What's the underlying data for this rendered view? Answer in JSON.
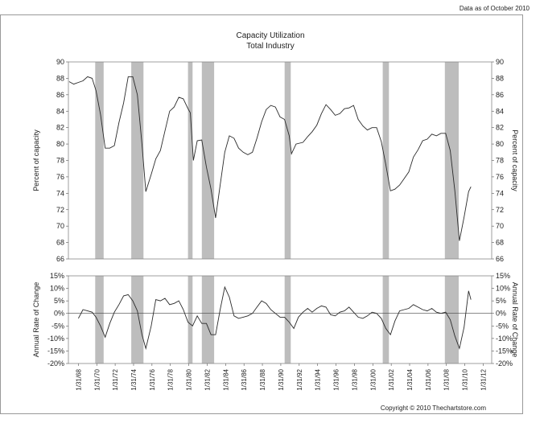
{
  "header_note": "Data as of October 2010",
  "copyright": "Copyright © 2010 Thechartstore.com",
  "colors": {
    "line": "#2a2a2a",
    "recession": "#bdbdbd",
    "axis": "#555555",
    "frame": "#888888"
  },
  "chart_data": [
    {
      "type": "line",
      "title": "Capacity Utilization",
      "subtitle": "Total Industry",
      "ylabel": "Percent of capacity",
      "ylabel_right": "Percent of capacity",
      "ylim": [
        66,
        90
      ],
      "yticks": [
        66,
        68,
        70,
        72,
        74,
        76,
        78,
        80,
        82,
        84,
        86,
        88,
        90
      ],
      "xlim": [
        "1967-01-01",
        "2013-01-01"
      ],
      "grid": false,
      "shaded_periods": [
        [
          "1969-12-01",
          "1970-11-01"
        ],
        [
          "1973-11-01",
          "1975-03-01"
        ],
        [
          "1980-01-01",
          "1980-07-01"
        ],
        [
          "1981-07-01",
          "1982-11-01"
        ],
        [
          "1990-07-01",
          "1991-03-01"
        ],
        [
          "2001-03-01",
          "2001-11-01"
        ],
        [
          "2007-12-01",
          "2009-06-01"
        ]
      ],
      "series": [
        {
          "x": [
            "1967-01-31",
            "1967-07-31",
            "1968-01-31",
            "1968-07-31",
            "1969-01-31",
            "1969-07-31",
            "1969-12-31",
            "1970-06-30",
            "1970-12-31",
            "1971-06-30",
            "1971-12-31",
            "1972-06-30",
            "1972-12-31",
            "1973-06-30",
            "1973-12-31",
            "1974-06-30",
            "1974-12-31",
            "1975-05-31",
            "1975-12-31",
            "1976-06-30",
            "1976-12-31",
            "1977-06-30",
            "1977-12-31",
            "1978-06-30",
            "1978-12-31",
            "1979-06-30",
            "1979-12-31",
            "1980-03-31",
            "1980-07-31",
            "1980-12-31",
            "1981-06-30",
            "1981-12-31",
            "1982-06-30",
            "1982-12-31",
            "1983-06-30",
            "1983-12-31",
            "1984-06-30",
            "1984-12-31",
            "1985-06-30",
            "1985-12-31",
            "1986-06-30",
            "1986-12-31",
            "1987-06-30",
            "1987-12-31",
            "1988-06-30",
            "1988-12-31",
            "1989-06-30",
            "1989-12-31",
            "1990-06-30",
            "1990-12-31",
            "1991-03-31",
            "1991-09-30",
            "1992-06-30",
            "1992-12-31",
            "1993-06-30",
            "1993-12-31",
            "1994-06-30",
            "1994-12-31",
            "1995-06-30",
            "1995-12-31",
            "1996-06-30",
            "1996-12-31",
            "1997-06-30",
            "1997-12-31",
            "1998-06-30",
            "1998-12-31",
            "1999-06-30",
            "1999-12-31",
            "2000-06-30",
            "2000-12-31",
            "2001-06-30",
            "2001-12-31",
            "2002-06-30",
            "2002-12-31",
            "2003-06-30",
            "2003-12-31",
            "2004-06-30",
            "2004-12-31",
            "2005-06-30",
            "2005-12-31",
            "2006-06-30",
            "2006-12-31",
            "2007-06-30",
            "2007-12-31",
            "2008-06-30",
            "2008-12-31",
            "2009-06-30",
            "2009-12-31",
            "2010-06-30",
            "2010-09-30"
          ],
          "y": [
            87.6,
            87.3,
            87.5,
            87.7,
            88.2,
            88.0,
            86.5,
            83.6,
            79.5,
            79.5,
            79.8,
            82.6,
            85.0,
            88.2,
            88.2,
            86.0,
            80.0,
            74.2,
            76.3,
            78.2,
            79.2,
            81.6,
            84.0,
            84.5,
            85.7,
            85.5,
            84.3,
            83.8,
            78.0,
            80.4,
            80.5,
            77.2,
            74.5,
            71.0,
            75.0,
            79.0,
            81.0,
            80.7,
            79.5,
            79.0,
            78.7,
            79.0,
            80.7,
            82.7,
            84.2,
            84.7,
            84.5,
            83.3,
            83.0,
            81.0,
            78.8,
            80.0,
            80.2,
            80.9,
            81.5,
            82.3,
            83.7,
            84.8,
            84.2,
            83.5,
            83.7,
            84.3,
            84.4,
            84.7,
            83.0,
            82.2,
            81.7,
            82.0,
            82.0,
            80.3,
            77.5,
            74.3,
            74.5,
            75.0,
            75.8,
            76.6,
            78.4,
            79.3,
            80.4,
            80.6,
            81.2,
            81.0,
            81.3,
            81.3,
            79.2,
            74.3,
            68.2,
            71.1,
            74.2,
            74.8
          ]
        }
      ]
    },
    {
      "type": "line",
      "title": "",
      "ylabel": "Annual Rate of Change",
      "ylabel_right": "Annual Rate of Change",
      "ylim": [
        -20,
        15
      ],
      "yticks": [
        -20,
        -15,
        -10,
        -5,
        0,
        5,
        10,
        15
      ],
      "ytick_labels": [
        "-20%",
        "-15%",
        "-10%",
        "-5%",
        "0%",
        "5%",
        "10%",
        "15%"
      ],
      "xlim": [
        "1967-01-01",
        "2013-01-01"
      ],
      "xtick_labels": [
        "1/31/68",
        "1/31/70",
        "1/31/72",
        "1/31/74",
        "1/31/76",
        "1/31/78",
        "1/31/80",
        "1/31/82",
        "1/31/84",
        "1/31/86",
        "1/31/88",
        "1/31/90",
        "1/31/92",
        "1/31/94",
        "1/31/96",
        "1/31/98",
        "1/31/00",
        "1/31/02",
        "1/31/04",
        "1/31/06",
        "1/31/08",
        "1/31/10",
        "1/31/12"
      ],
      "xtick_dates": [
        "1968-01-31",
        "1970-01-31",
        "1972-01-31",
        "1974-01-31",
        "1976-01-31",
        "1978-01-31",
        "1980-01-31",
        "1982-01-31",
        "1984-01-31",
        "1986-01-31",
        "1988-01-31",
        "1990-01-31",
        "1992-01-31",
        "1994-01-31",
        "1996-01-31",
        "1998-01-31",
        "2000-01-31",
        "2002-01-31",
        "2004-01-31",
        "2006-01-31",
        "2008-01-31",
        "2010-01-31",
        "2012-01-31"
      ],
      "grid": false,
      "series": [
        {
          "x": [
            "1968-01-31",
            "1968-07-31",
            "1969-01-31",
            "1969-07-31",
            "1969-12-31",
            "1970-06-30",
            "1970-12-31",
            "1971-06-30",
            "1971-12-31",
            "1972-06-30",
            "1972-12-31",
            "1973-06-30",
            "1973-12-31",
            "1974-06-30",
            "1974-12-31",
            "1975-05-31",
            "1975-12-31",
            "1976-06-30",
            "1976-12-31",
            "1977-06-30",
            "1977-12-31",
            "1978-06-30",
            "1978-12-31",
            "1979-06-30",
            "1979-12-31",
            "1980-06-30",
            "1980-12-31",
            "1981-06-30",
            "1981-12-31",
            "1982-06-30",
            "1982-12-31",
            "1983-06-30",
            "1983-12-31",
            "1984-06-30",
            "1984-12-31",
            "1985-06-30",
            "1985-12-31",
            "1986-06-30",
            "1986-12-31",
            "1987-06-30",
            "1987-12-31",
            "1988-06-30",
            "1988-12-31",
            "1989-06-30",
            "1989-12-31",
            "1990-06-30",
            "1990-12-31",
            "1991-06-30",
            "1991-12-31",
            "1992-06-30",
            "1992-12-31",
            "1993-06-30",
            "1993-12-31",
            "1994-06-30",
            "1994-12-31",
            "1995-06-30",
            "1995-12-31",
            "1996-06-30",
            "1996-12-31",
            "1997-06-30",
            "1997-12-31",
            "1998-06-30",
            "1998-12-31",
            "1999-06-30",
            "1999-12-31",
            "2000-06-30",
            "2000-12-31",
            "2001-06-30",
            "2001-12-31",
            "2002-06-30",
            "2002-12-31",
            "2003-06-30",
            "2003-12-31",
            "2004-06-30",
            "2004-12-31",
            "2005-06-30",
            "2005-12-31",
            "2006-06-30",
            "2006-12-31",
            "2007-06-30",
            "2007-12-31",
            "2008-06-30",
            "2008-12-31",
            "2009-06-30",
            "2009-12-31",
            "2010-06-30",
            "2010-09-30"
          ],
          "y": [
            -2.0,
            1.5,
            1.0,
            0.5,
            -1.5,
            -5.0,
            -9.5,
            -4.0,
            0.5,
            3.5,
            7.0,
            7.5,
            5.0,
            1.0,
            -8.5,
            -14.0,
            -5.0,
            5.5,
            5.0,
            6.0,
            3.5,
            4.0,
            5.0,
            1.5,
            -3.5,
            -5.0,
            -1.0,
            -4.0,
            -4.0,
            -8.5,
            -8.5,
            1.5,
            10.5,
            6.5,
            -1.0,
            -2.0,
            -1.5,
            -1.0,
            0.0,
            2.5,
            5.0,
            4.0,
            1.5,
            0.0,
            -1.5,
            -1.5,
            -3.5,
            -6.0,
            -1.5,
            0.5,
            2.0,
            0.5,
            2.0,
            3.0,
            2.5,
            -0.5,
            -1.0,
            0.5,
            1.0,
            2.5,
            0.5,
            -1.5,
            -2.0,
            -1.0,
            0.5,
            0.0,
            -2.0,
            -6.0,
            -8.5,
            -3.0,
            1.0,
            1.5,
            2.0,
            3.5,
            2.5,
            1.5,
            1.0,
            2.0,
            0.5,
            0.0,
            0.5,
            -2.5,
            -9.0,
            -14.0,
            -5.5,
            9.0,
            5.5
          ]
        }
      ]
    }
  ]
}
